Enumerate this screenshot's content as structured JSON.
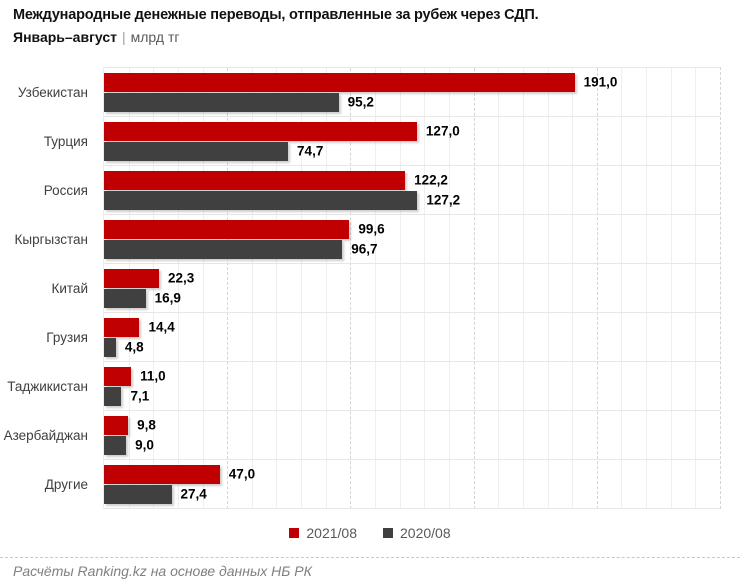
{
  "title": "Международные денежные переводы, отправленные за рубеж через СДП.",
  "subtitle": {
    "period": "Январь–август",
    "separator": "|",
    "unit": "млрд тг"
  },
  "footer": "Расчёты Ranking.kz на основе данных НБ РК",
  "colors": {
    "series_2021": "#c00000",
    "series_2020": "#404040",
    "value_label": "#000000",
    "legend_text": "#595959",
    "footer_text": "#808080"
  },
  "chart_data": {
    "type": "bar",
    "orientation": "horizontal",
    "title": "Международные денежные переводы, отправленные за рубеж через СДП. Январь–август, млрд тг",
    "xlabel": "",
    "ylabel": "",
    "categories": [
      "Узбекистан",
      "Турция",
      "Россия",
      "Кыргызстан",
      "Китай",
      "Грузия",
      "Таджикистан",
      "Азербайджан",
      "Другие"
    ],
    "series": [
      {
        "name": "2021/08",
        "color": "#c00000",
        "values": [
          191.0,
          127.0,
          122.2,
          99.6,
          22.3,
          14.4,
          11.0,
          9.8,
          47.0
        ]
      },
      {
        "name": "2020/08",
        "color": "#404040",
        "values": [
          95.2,
          74.7,
          127.2,
          96.7,
          16.9,
          4.8,
          7.1,
          9.0,
          27.4
        ]
      }
    ],
    "value_labels": true,
    "decimal_separator": ",",
    "xlim": [
      0,
      250
    ],
    "grid": {
      "minor_step": 10,
      "major_step": 50,
      "minor_style": "solid",
      "major_style": "dashed"
    },
    "legend_position": "bottom"
  }
}
